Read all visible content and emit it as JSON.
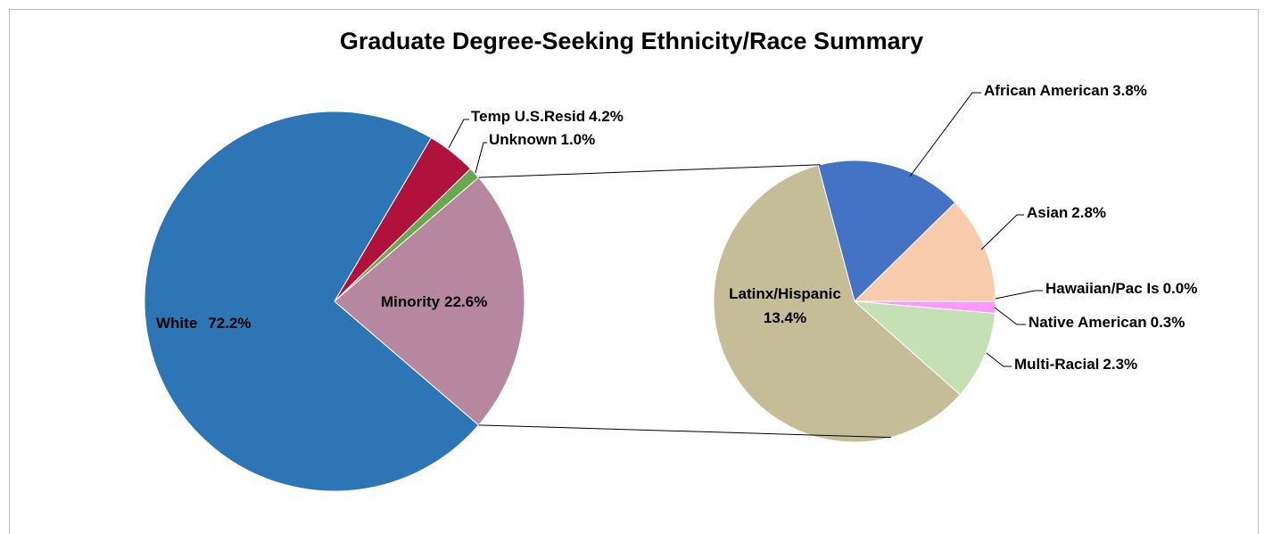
{
  "chart_data": {
    "type": "pie",
    "title": "Graduate Degree-Seeking Ethnicity/Race Summary",
    "categories": [
      "White",
      "Temp U.S.Resid",
      "Unknown",
      "Minority"
    ],
    "values": [
      72.2,
      4.2,
      1.0,
      22.6
    ],
    "value_labels": [
      "72.2%",
      "4.2%",
      "1.0%",
      "22.6%"
    ],
    "colors": [
      "#2e75b6",
      "#b0123b",
      "#6aa84f",
      "#b7879f"
    ],
    "breakout": {
      "type": "pie",
      "categories": [
        "African American",
        "Asian",
        "Hawaiian/Pac Is",
        "Native American",
        "Multi-Racial",
        "Latinx/Hispanic"
      ],
      "values": [
        3.8,
        2.8,
        0.0,
        0.3,
        2.3,
        13.4
      ],
      "value_labels": [
        "3.8%",
        "2.8%",
        "0.0%",
        "0.3%",
        "2.3%",
        "13.4%"
      ],
      "colors": [
        "#4472c4",
        "#f8cbad",
        "#9dc3e6",
        "#ff99ff",
        "#c5e0b4",
        "#c4bd97"
      ]
    }
  }
}
